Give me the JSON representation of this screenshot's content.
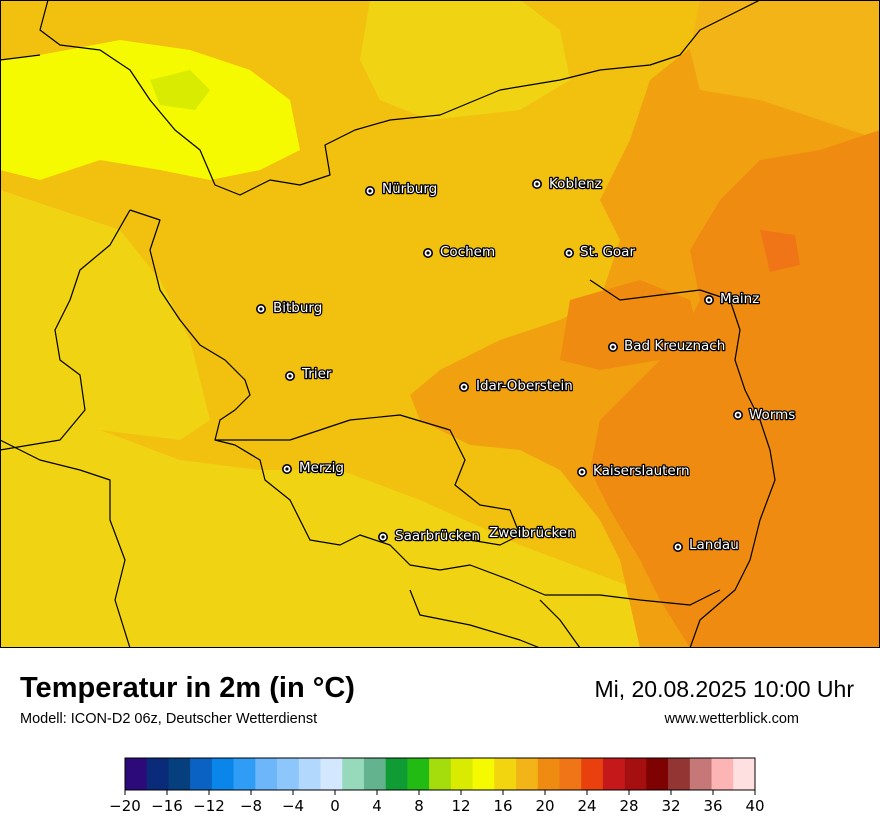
{
  "map": {
    "cities": [
      {
        "name": "Nürburg",
        "id": "nuerburg"
      },
      {
        "name": "Koblenz",
        "id": "koblenz"
      },
      {
        "name": "Cochem",
        "id": "cochem"
      },
      {
        "name": "St. Goar",
        "id": "st-goar"
      },
      {
        "name": "Mainz",
        "id": "mainz"
      },
      {
        "name": "Bitburg",
        "id": "bitburg"
      },
      {
        "name": "Bad Kreuznach",
        "id": "bad-kreuznach"
      },
      {
        "name": "Trier",
        "id": "trier"
      },
      {
        "name": "Idar-Oberstein",
        "id": "idar-oberstein"
      },
      {
        "name": "Worms",
        "id": "worms"
      },
      {
        "name": "Merzig",
        "id": "merzig"
      },
      {
        "name": "Kaiserslautern",
        "id": "kaiserslautern"
      },
      {
        "name": "Saarbrücken",
        "id": "saarbruecken"
      },
      {
        "name": "Zweibrücken",
        "id": "zweibruecken"
      },
      {
        "name": "Landau",
        "id": "landau"
      }
    ]
  },
  "footer": {
    "title": "Temperatur in 2m (in °C)",
    "subtitle": "Modell: ICON-D2 06z, Deutscher Wetterdienst",
    "datetime": "Mi, 20.08.2025 10:00 Uhr",
    "website": "www.wetterblick.com"
  },
  "legend": {
    "ticks": [
      "−20",
      "−16",
      "−12",
      "−8",
      "−4",
      "0",
      "4",
      "8",
      "12",
      "16",
      "20",
      "24",
      "28",
      "32",
      "36",
      "40"
    ],
    "colors": [
      "#2d0a7a",
      "#0a2a7a",
      "#063f7e",
      "#0a63c2",
      "#0a86ea",
      "#2f9df5",
      "#6db6fa",
      "#8cc6fb",
      "#b3d8fd",
      "#d3e7fe",
      "#96dabb",
      "#63b38e",
      "#0f9c35",
      "#22bb14",
      "#a4dc0c",
      "#d8eb00",
      "#f5fa00",
      "#f2d40f",
      "#f2b417",
      "#f08b11",
      "#ef7517",
      "#e8410d",
      "#c4181a",
      "#a60f0f",
      "#7e0202",
      "#923533",
      "#c67777",
      "#fcb4b4",
      "#ffe0e0"
    ]
  }
}
